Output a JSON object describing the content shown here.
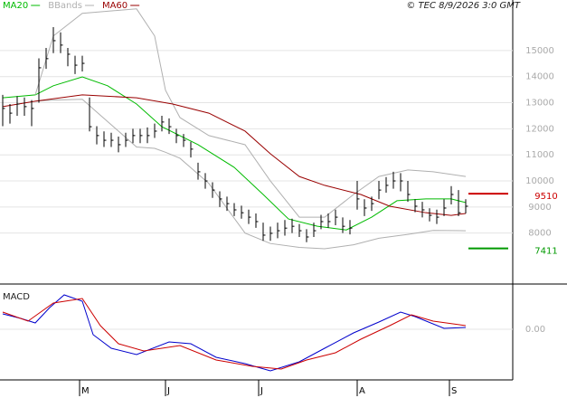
{
  "chart_data": [
    {
      "type": "ohlc",
      "timestamp": "© TEC 8/9/2026 3:0 GMT",
      "xlim": [
        -0.75,
        141
      ],
      "ylim": [
        6080,
        16940
      ],
      "yticks": [
        8000,
        9000,
        10000,
        11000,
        12000,
        13000,
        14000,
        15000
      ],
      "grid": true,
      "x": [
        0,
        2,
        4,
        6,
        8,
        10,
        12,
        14,
        16,
        18,
        20,
        22,
        24,
        26,
        28,
        30,
        32,
        34,
        36,
        38,
        40,
        42,
        44,
        46,
        48,
        50,
        52,
        54,
        56,
        58,
        60,
        62,
        64,
        66,
        68,
        70,
        72,
        74,
        76,
        78,
        80,
        82,
        84,
        86,
        88,
        90,
        92,
        94,
        96,
        98,
        100,
        102,
        104,
        106,
        108,
        110,
        112,
        114,
        116,
        118,
        120,
        122,
        124,
        126,
        128
      ],
      "high": [
        13300,
        12950,
        13250,
        13200,
        13100,
        14700,
        15100,
        15900,
        15700,
        15100,
        14800,
        14800,
        13200,
        12100,
        11900,
        11850,
        11700,
        11850,
        12000,
        12000,
        12050,
        12200,
        12500,
        12400,
        12000,
        11800,
        11500,
        10700,
        10300,
        9950,
        9600,
        9400,
        9150,
        9050,
        8900,
        8750,
        8400,
        8250,
        8400,
        8500,
        8550,
        8350,
        8150,
        8400,
        8700,
        8750,
        8900,
        8600,
        8500,
        10000,
        9300,
        9400,
        10000,
        10150,
        10350,
        10300,
        10000,
        9300,
        9200,
        8950,
        8900,
        9300,
        9800,
        9650,
        9300
      ],
      "low": [
        12100,
        12200,
        12500,
        12500,
        12100,
        13000,
        14300,
        14900,
        14900,
        14400,
        14100,
        14200,
        11900,
        11400,
        11300,
        11300,
        11100,
        11300,
        11450,
        11450,
        11450,
        11650,
        11900,
        11800,
        11450,
        11300,
        10900,
        10050,
        9700,
        9350,
        9000,
        8850,
        8650,
        8550,
        8350,
        8200,
        7700,
        7700,
        7800,
        7900,
        8000,
        7850,
        7650,
        7850,
        8150,
        8200,
        8300,
        8000,
        7950,
        8900,
        8650,
        8850,
        9300,
        9550,
        9700,
        9600,
        9200,
        8800,
        8600,
        8450,
        8350,
        8650,
        9100,
        8650,
        8750
      ],
      "close": [
        12780,
        12600,
        12950,
        12850,
        12780,
        14340,
        14690,
        15380,
        15210,
        14860,
        14440,
        14510,
        12080,
        11740,
        11560,
        11560,
        11390,
        11560,
        11740,
        11740,
        11740,
        11910,
        12260,
        12080,
        11740,
        11560,
        11220,
        10350,
        10000,
        9650,
        9310,
        9130,
        8890,
        8780,
        8610,
        8440,
        7920,
        7990,
        8090,
        8190,
        8260,
        8090,
        7850,
        8090,
        8440,
        8440,
        8610,
        8260,
        8190,
        9310,
        8960,
        9130,
        9650,
        9830,
        10000,
        10000,
        9480,
        9030,
        8890,
        8680,
        8610,
        8960,
        9480,
        8780,
        9030
      ],
      "series": [
        {
          "name": "MA20",
          "color": "#00bb00",
          "x": [
            0,
            9,
            14,
            22,
            29,
            37,
            44,
            54,
            64,
            72,
            79,
            87,
            95,
            102,
            109,
            117,
            124,
            128
          ],
          "values": [
            13190,
            13300,
            13650,
            13990,
            13650,
            12950,
            12080,
            11390,
            10520,
            9480,
            8540,
            8260,
            8120,
            8610,
            9240,
            9310,
            9310,
            9170
          ]
        },
        {
          "name": "BBands",
          "color": "#b0b0b0",
          "x": [
            9,
            14,
            22,
            37,
            42,
            45,
            49,
            57,
            67,
            74,
            82,
            89,
            97,
            104,
            112,
            119,
            128
          ],
          "values": [
            13300,
            15560,
            16430,
            16600,
            15560,
            13480,
            12430,
            11740,
            11390,
            10000,
            8610,
            8610,
            9480,
            10170,
            10420,
            10350,
            10170
          ],
          "lower": [
            13060,
            13100,
            13130,
            11300,
            11250,
            11100,
            10870,
            9900,
            8000,
            7600,
            7450,
            7400,
            7550,
            7800,
            7950,
            8100,
            8090
          ]
        },
        {
          "name": "MA60",
          "color": "#990000",
          "x": [
            0,
            9,
            22,
            37,
            47,
            57,
            67,
            74,
            82,
            89,
            99,
            107,
            117,
            124,
            128
          ],
          "values": [
            12850,
            13060,
            13300,
            13190,
            12950,
            12600,
            11910,
            11040,
            10170,
            9830,
            9480,
            9030,
            8780,
            8680,
            8750
          ]
        }
      ],
      "levels": [
        {
          "value": 9510,
          "color": "#cc0000"
        },
        {
          "value": 7411,
          "color": "#009900"
        }
      ]
    },
    {
      "type": "line",
      "title": "MACD",
      "xlim": [
        -0.75,
        141
      ],
      "ylim": [
        -540,
        460
      ],
      "yticks": [
        {
          "value": 0,
          "label": "0.00"
        }
      ],
      "xticks": [
        {
          "value": 21.25,
          "label": "M"
        },
        {
          "value": 45,
          "label": "J"
        },
        {
          "value": 70.75,
          "label": "J"
        },
        {
          "value": 98,
          "label": "A"
        },
        {
          "value": 123.5,
          "label": "S"
        }
      ],
      "series": [
        {
          "color": "#0000cc",
          "x": [
            0,
            5,
            9,
            13,
            17,
            22,
            25,
            30,
            37,
            46,
            52,
            59,
            67,
            74,
            82,
            89,
            97,
            104,
            110,
            114,
            122,
            128
          ],
          "values": [
            170,
            120,
            70,
            240,
            380,
            310,
            -60,
            -210,
            -280,
            -140,
            -160,
            -310,
            -380,
            -460,
            -360,
            -210,
            -40,
            80,
            190,
            140,
            10,
            20
          ]
        },
        {
          "color": "#cc0000",
          "x": [
            0,
            7,
            14,
            22,
            27,
            32,
            39,
            49,
            59,
            69,
            77,
            84,
            92,
            99,
            107,
            113,
            119,
            128
          ],
          "values": [
            190,
            90,
            290,
            340,
            40,
            -160,
            -240,
            -180,
            -340,
            -410,
            -440,
            -340,
            -260,
            -110,
            40,
            160,
            90,
            40
          ]
        }
      ]
    }
  ]
}
